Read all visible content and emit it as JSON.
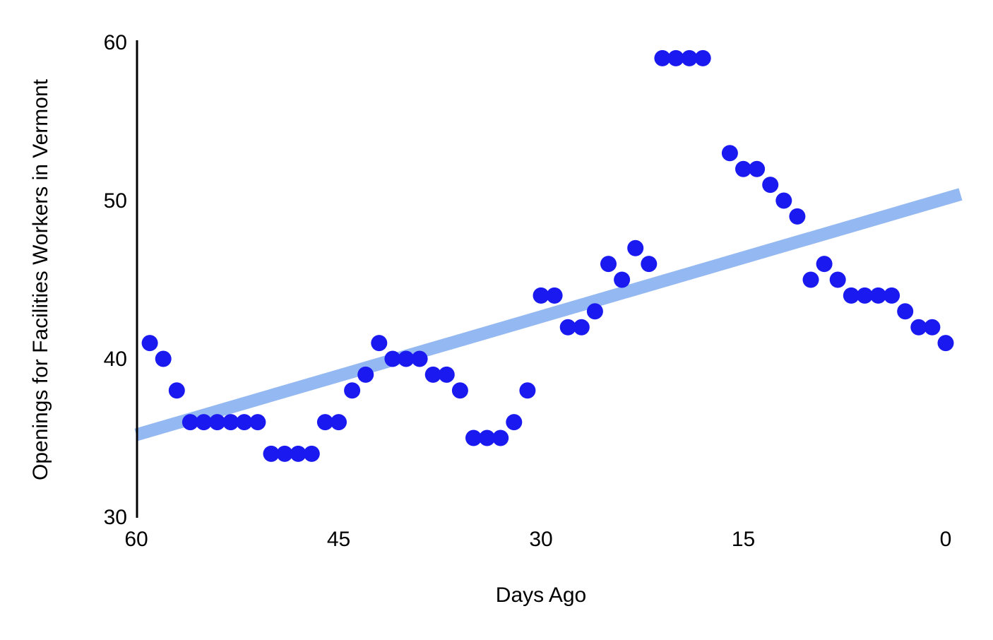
{
  "chart_data": {
    "type": "scatter",
    "title": "",
    "xlabel": "Days Ago",
    "ylabel": "Openings for Facilities Workers in Vermont",
    "x_ticks": [
      60,
      45,
      30,
      15,
      0
    ],
    "y_ticks": [
      30,
      40,
      50,
      60
    ],
    "xlim": [
      60,
      0
    ],
    "ylim": [
      30,
      60
    ],
    "x_axis_reversed": true,
    "grid": false,
    "legend": "none",
    "point_color": "#1a1af0",
    "trendline_color": "#94b8f2",
    "axis_color": "#000000",
    "points_format": [
      "days_ago",
      "openings"
    ],
    "points": [
      [
        59,
        41
      ],
      [
        58,
        40
      ],
      [
        57,
        38
      ],
      [
        56,
        36
      ],
      [
        55,
        36
      ],
      [
        54,
        36
      ],
      [
        53,
        36
      ],
      [
        52,
        36
      ],
      [
        51,
        36
      ],
      [
        50,
        34
      ],
      [
        49,
        34
      ],
      [
        48,
        34
      ],
      [
        47,
        34
      ],
      [
        46,
        36
      ],
      [
        45,
        36
      ],
      [
        44,
        38
      ],
      [
        43,
        39
      ],
      [
        42,
        41
      ],
      [
        41,
        40
      ],
      [
        40,
        40
      ],
      [
        39,
        40
      ],
      [
        38,
        39
      ],
      [
        37,
        39
      ],
      [
        36,
        38
      ],
      [
        35,
        35
      ],
      [
        34,
        35
      ],
      [
        33,
        35
      ],
      [
        32,
        36
      ],
      [
        31,
        38
      ],
      [
        30,
        44
      ],
      [
        29,
        44
      ],
      [
        28,
        42
      ],
      [
        27,
        42
      ],
      [
        26,
        43
      ],
      [
        25,
        46
      ],
      [
        24,
        45
      ],
      [
        23,
        47
      ],
      [
        22,
        46
      ],
      [
        21,
        59
      ],
      [
        20,
        59
      ],
      [
        19,
        59
      ],
      [
        18,
        59
      ],
      [
        16,
        53
      ],
      [
        15,
        52
      ],
      [
        14,
        52
      ],
      [
        13,
        51
      ],
      [
        12,
        50
      ],
      [
        11,
        49
      ],
      [
        10,
        45
      ],
      [
        9,
        46
      ],
      [
        8,
        45
      ],
      [
        7,
        44
      ],
      [
        6,
        44
      ],
      [
        5,
        44
      ],
      [
        4,
        44
      ],
      [
        3,
        43
      ],
      [
        2,
        42
      ],
      [
        1,
        42
      ],
      [
        0,
        41
      ]
    ],
    "trendline": {
      "x_start": 60,
      "y_start": 35.2,
      "x_end": -1.1,
      "y_end": 50.4
    }
  }
}
